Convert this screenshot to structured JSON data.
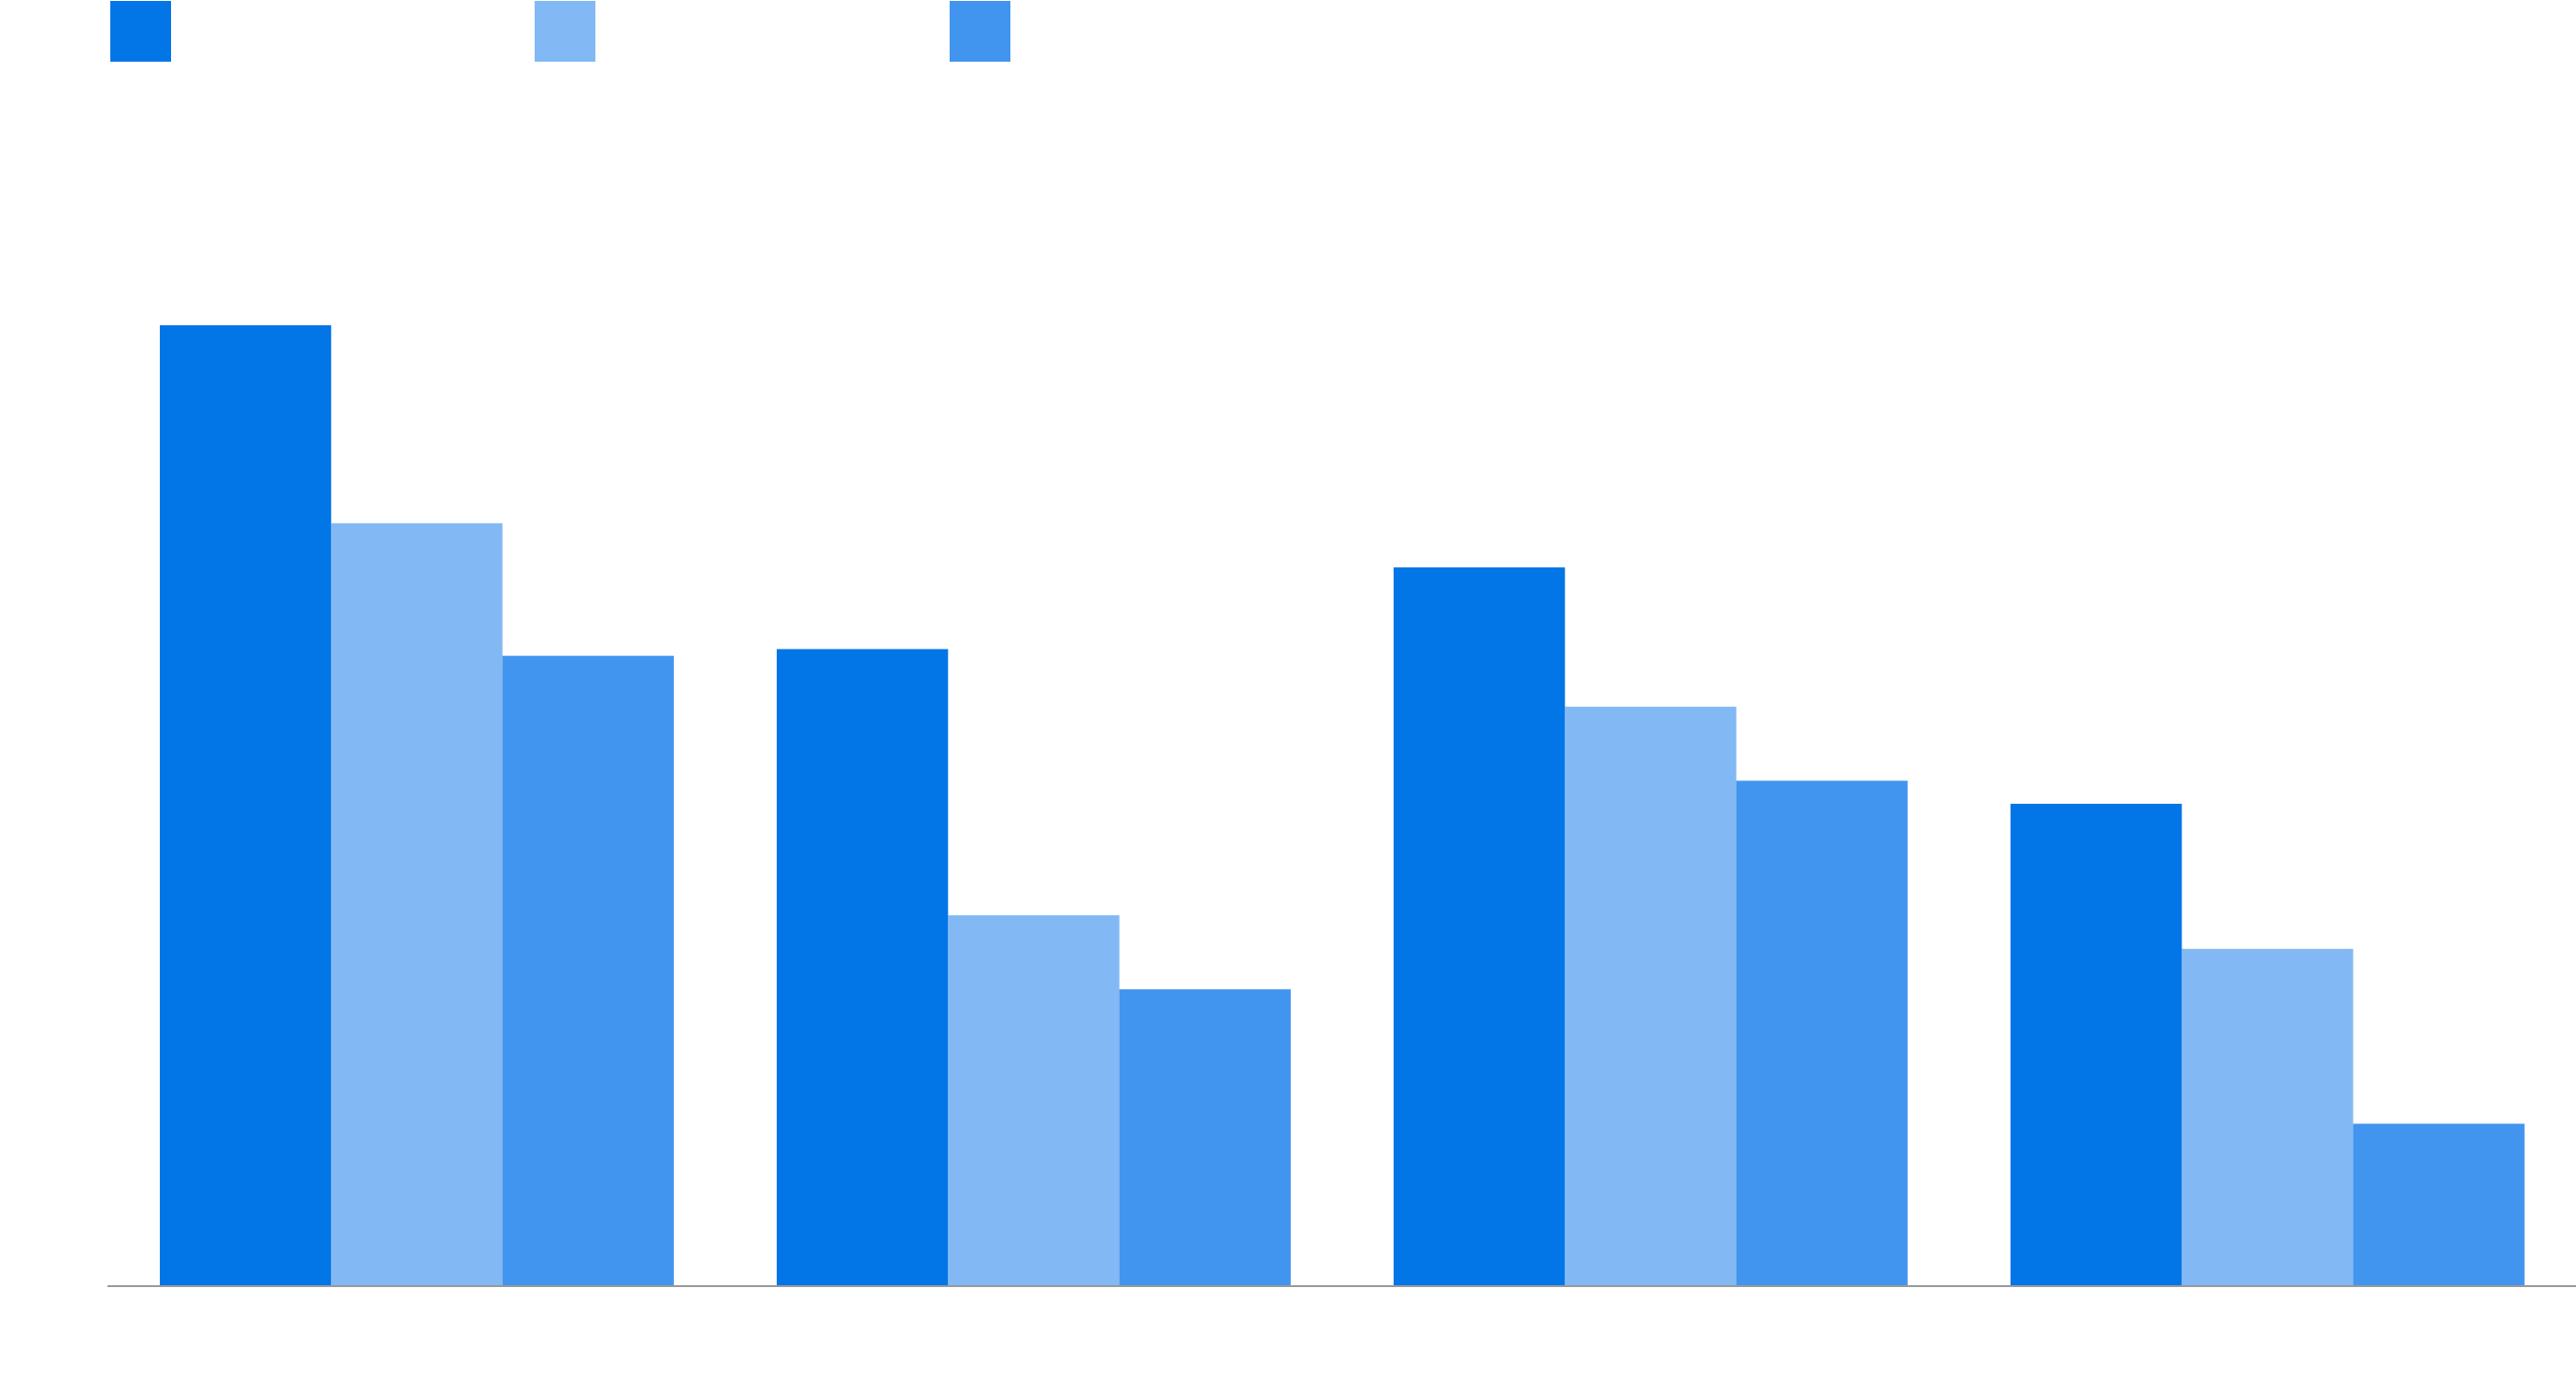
{
  "chart_data": {
    "type": "bar",
    "title": "",
    "xlabel": "",
    "ylabel": "",
    "categories": [
      "",
      "",
      "",
      ""
    ],
    "series": [
      {
        "name": "",
        "color": "#0275e7",
        "values": [
          100,
          66.3,
          74.8,
          50.2
        ]
      },
      {
        "name": "",
        "color": "#82b9f4",
        "values": [
          79.4,
          38.6,
          60.3,
          35.1
        ]
      },
      {
        "name": "",
        "color": "#4295ee",
        "values": [
          65.6,
          30.9,
          52.6,
          16.9
        ]
      }
    ],
    "ylim": [
      0,
      100
    ],
    "grid": false,
    "legend": "top-left",
    "value_axis_shown": false
  }
}
